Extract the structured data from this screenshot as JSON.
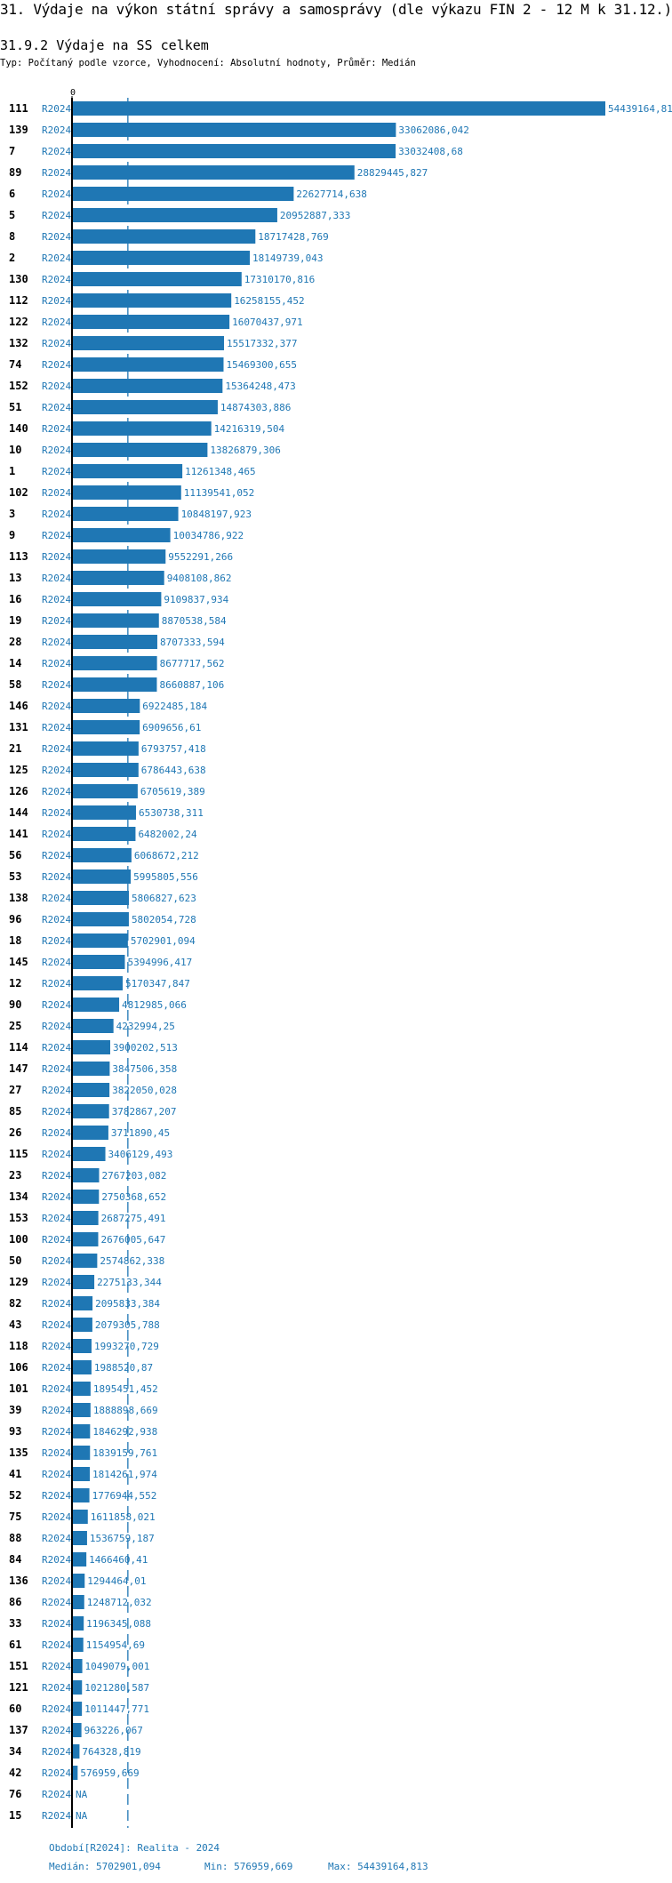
{
  "header": {
    "title": "31. Výdaje na výkon státní správy a samosprávy (dle výkazu FIN 2 - 12 M k 31.12.)",
    "subtitle": "31.9.2 Výdaje na SS celkem",
    "description": "Typ: Počítaný podle vzorce, Vyhodnocení: Absolutní hodnoty, Průměr: Medián"
  },
  "colors": {
    "bar": "#1f77b4",
    "text_accent": "#1f77b4",
    "axis": "#000000",
    "median_line": "#1f77b4"
  },
  "chart_data": {
    "type": "bar",
    "orientation": "horizontal",
    "x_tick_labels": [
      "0"
    ],
    "xlim": [
      0,
      54439164.813
    ],
    "grid": false,
    "reference_line": {
      "label": "Medián",
      "value": 5702901.094,
      "style": "dashed"
    },
    "period": "R2024",
    "categories": [
      "111",
      "139",
      "7",
      "89",
      "6",
      "5",
      "8",
      "2",
      "130",
      "112",
      "122",
      "132",
      "74",
      "152",
      "51",
      "140",
      "10",
      "1",
      "102",
      "3",
      "9",
      "113",
      "13",
      "16",
      "19",
      "28",
      "14",
      "58",
      "146",
      "131",
      "21",
      "125",
      "126",
      "144",
      "141",
      "56",
      "53",
      "138",
      "96",
      "18",
      "145",
      "12",
      "90",
      "25",
      "114",
      "147",
      "27",
      "85",
      "26",
      "115",
      "23",
      "134",
      "153",
      "100",
      "50",
      "129",
      "82",
      "43",
      "118",
      "106",
      "101",
      "39",
      "93",
      "135",
      "41",
      "52",
      "75",
      "88",
      "84",
      "136",
      "86",
      "33",
      "61",
      "151",
      "121",
      "60",
      "137",
      "34",
      "42",
      "76",
      "15"
    ],
    "values": [
      54439164.81,
      33062086.042,
      33032408.68,
      28829445.827,
      22627714.638,
      20952887.333,
      18717428.769,
      18149739.043,
      17310170.816,
      16258155.452,
      16070437.971,
      15517332.377,
      15469300.655,
      15364248.473,
      14874303.886,
      14216319.504,
      13826879.306,
      11261348.465,
      11139541.052,
      10848197.923,
      10034786.922,
      9552291.266,
      9408108.862,
      9109837.934,
      8870538.584,
      8707333.594,
      8677717.562,
      8660887.106,
      6922485.184,
      6909656.61,
      6793757.418,
      6786443.638,
      6705619.389,
      6530738.311,
      6482002.24,
      6068672.212,
      5995805.556,
      5806827.623,
      5802054.728,
      5702901.094,
      5394996.417,
      5170347.847,
      4812985.066,
      4232994.25,
      3900202.513,
      3847506.358,
      3822050.028,
      3782867.207,
      3711890.45,
      3406129.493,
      2767203.082,
      2750368.652,
      2687275.491,
      2676005.647,
      2574862.338,
      2275133.344,
      2095833.384,
      2079305.788,
      1993270.729,
      1988520.87,
      1895451.452,
      1888898.669,
      1846292.938,
      1839159.761,
      1814261.974,
      1776944.552,
      1611858.021,
      1536759.187,
      1466460.41,
      1294464.01,
      1248712.032,
      1196345.088,
      1154954.69,
      1049079.001,
      1021280.587,
      1011447.771,
      963226.067,
      764328.819,
      576959.669,
      null,
      null
    ],
    "value_labels": [
      "54439164,81",
      "33062086,042",
      "33032408,68",
      "28829445,827",
      "22627714,638",
      "20952887,333",
      "18717428,769",
      "18149739,043",
      "17310170,816",
      "16258155,452",
      "16070437,971",
      "15517332,377",
      "15469300,655",
      "15364248,473",
      "14874303,886",
      "14216319,504",
      "13826879,306",
      "11261348,465",
      "11139541,052",
      "10848197,923",
      "10034786,922",
      "9552291,266",
      "9408108,862",
      "9109837,934",
      "8870538,584",
      "8707333,594",
      "8677717,562",
      "8660887,106",
      "6922485,184",
      "6909656,61",
      "6793757,418",
      "6786443,638",
      "6705619,389",
      "6530738,311",
      "6482002,24",
      "6068672,212",
      "5995805,556",
      "5806827,623",
      "5802054,728",
      "5702901,094",
      "5394996,417",
      "5170347,847",
      "4812985,066",
      "4232994,25",
      "3900202,513",
      "3847506,358",
      "3822050,028",
      "3782867,207",
      "3711890,45",
      "3406129,493",
      "2767203,082",
      "2750368,652",
      "2687275,491",
      "2676005,647",
      "2574862,338",
      "2275133,344",
      "2095833,384",
      "2079305,788",
      "1993270,729",
      "1988520,87",
      "1895451,452",
      "1888898,669",
      "1846292,938",
      "1839159,761",
      "1814261,974",
      "1776944,552",
      "1611858,021",
      "1536759,187",
      "1466460,41",
      "1294464,01",
      "1248712,032",
      "1196345,088",
      "1154954,69",
      "1049079,001",
      "1021280,587",
      "1011447,771",
      "963226,067",
      "764328,819",
      "576959,669",
      "NA",
      "NA"
    ]
  },
  "footer": {
    "period_legend": "Období[R2024]: Realita - 2024",
    "median": "Medián: 5702901,094",
    "min": "Min: 576959,669",
    "max": "Max: 54439164,813"
  }
}
